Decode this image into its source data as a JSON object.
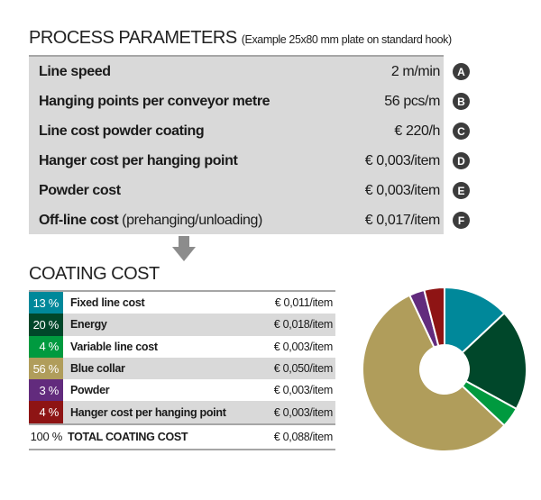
{
  "process": {
    "title": "PROCESS PARAMETERS",
    "subtitle": "(Example 25x80 mm plate on standard hook)",
    "rows": [
      {
        "label": "Line speed",
        "sub": "",
        "value": "2 m/min",
        "badge": "A"
      },
      {
        "label": "Hanging points per conveyor metre",
        "sub": "",
        "value": "56 pcs/m",
        "badge": "B"
      },
      {
        "label": "Line cost powder coating",
        "sub": "",
        "value": "€ 220/h",
        "badge": "C"
      },
      {
        "label": "Hanger cost per hanging point",
        "sub": "",
        "value": "€ 0,003/item",
        "badge": "D"
      },
      {
        "label": "Powder cost",
        "sub": "",
        "value": "€ 0,003/item",
        "badge": "E"
      },
      {
        "label": "Off-line cost",
        "sub": " (prehanging/unloading)",
        "value": "€ 0,017/item",
        "badge": "F"
      }
    ]
  },
  "coating": {
    "title": "COATING COST",
    "total": {
      "pct": "100 %",
      "label": "TOTAL COATING COST",
      "value": "€ 0,088/item"
    }
  },
  "chart_data": {
    "type": "pie",
    "donut": true,
    "title": "COATING COST",
    "categories": [
      "Fixed line cost",
      "Energy",
      "Variable line cost",
      "Blue collar",
      "Powder",
      "Hanger cost per hanging point"
    ],
    "pct_labels": [
      "13 %",
      "20 %",
      "4 %",
      "56 %",
      "3 %",
      "4 %"
    ],
    "values": [
      13,
      20,
      4,
      56,
      3,
      4
    ],
    "cost_labels": [
      "€ 0,011/item",
      "€ 0,018/item",
      "€ 0,003/item",
      "€ 0,050/item",
      "€ 0,003/item",
      "€ 0,003/item"
    ],
    "colors": [
      "#00889a",
      "#00472a",
      "#009a3f",
      "#b09d5b",
      "#622b7d",
      "#8e1414"
    ]
  }
}
